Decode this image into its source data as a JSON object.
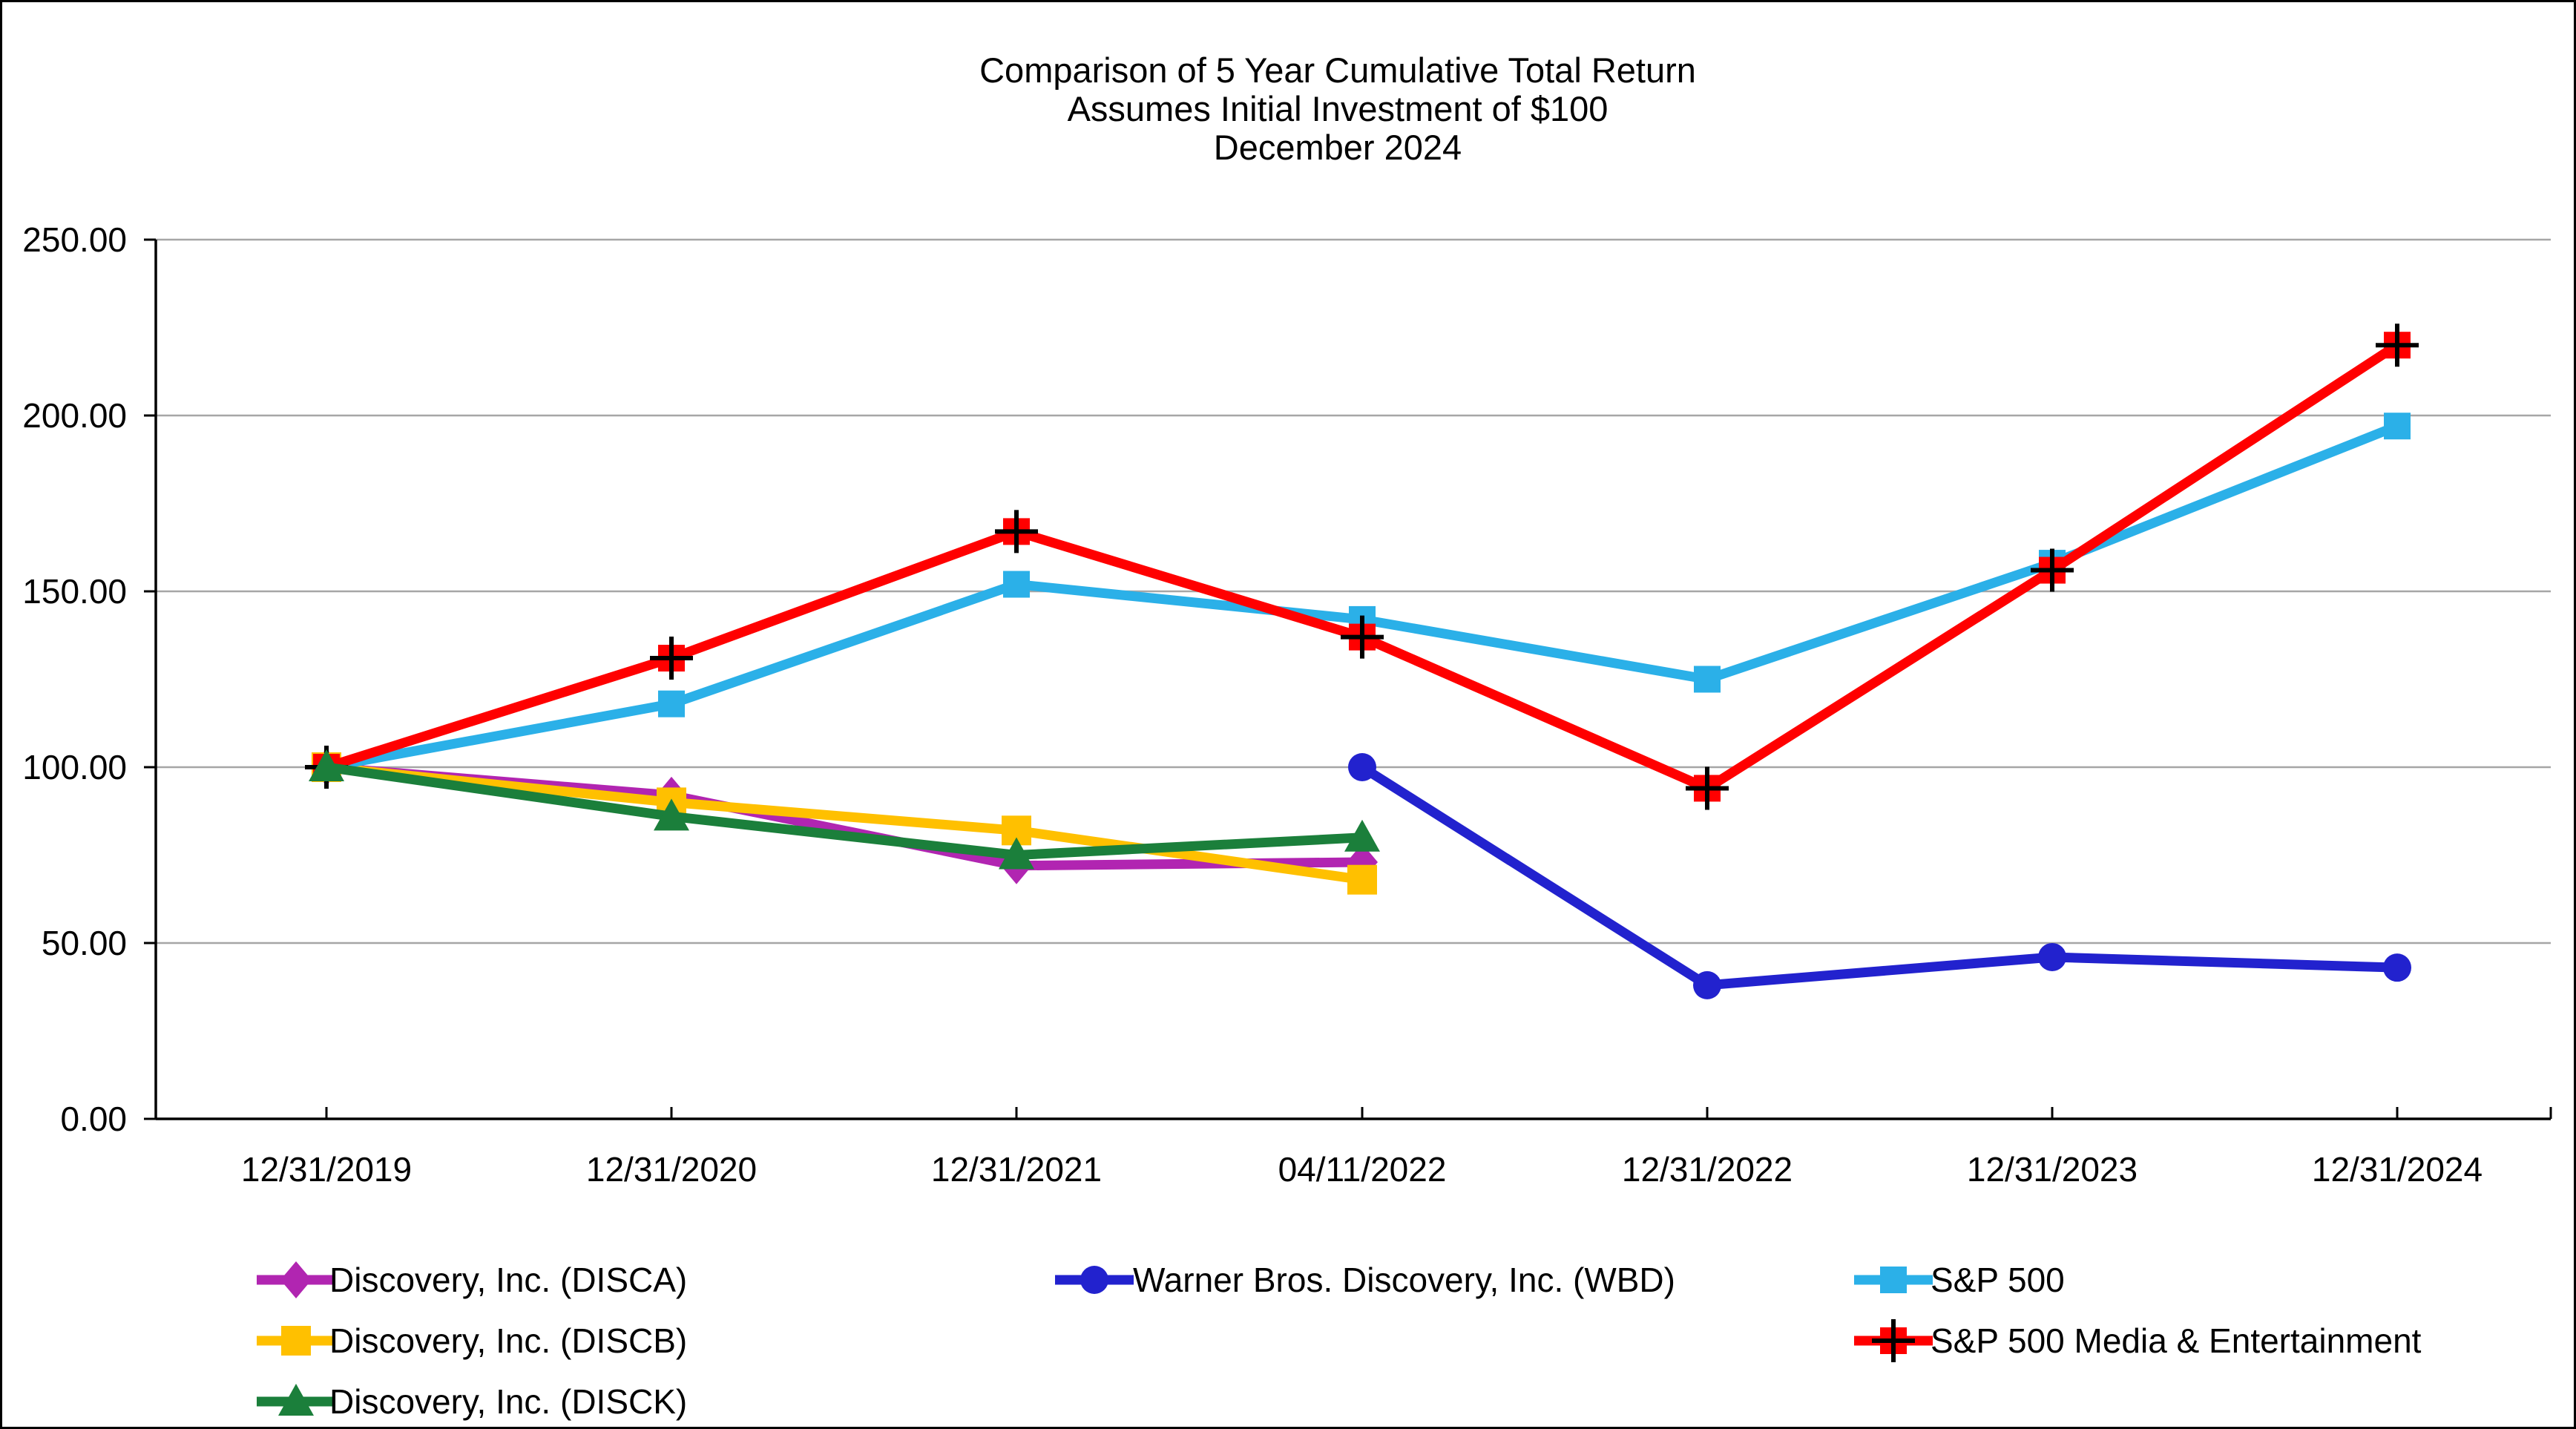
{
  "title": {
    "line1": "Comparison of 5 Year Cumulative Total Return",
    "line2": "Assumes Initial Investment of $100",
    "line3": "December 2024"
  },
  "chart_data": {
    "type": "line",
    "title": "Comparison of 5 Year Cumulative Total Return",
    "subtitle": "Assumes Initial Investment of $100",
    "date_label": "December 2024",
    "categories": [
      "12/31/2019",
      "12/31/2020",
      "12/31/2021",
      "04/11/2022",
      "12/31/2022",
      "12/31/2023",
      "12/31/2024"
    ],
    "y_ticks": [
      {
        "label": "0.00",
        "value": 0
      },
      {
        "label": "50.00",
        "value": 50
      },
      {
        "label": "100.00",
        "value": 100
      },
      {
        "label": "150.00",
        "value": 150
      },
      {
        "label": "200.00",
        "value": 200
      },
      {
        "label": "250.00",
        "value": 250
      }
    ],
    "ylim": [
      0,
      250
    ],
    "grid": true,
    "legend_position": "bottom",
    "colors": {
      "grid": "#A6A6A6",
      "axis": "#000000",
      "marker_cross": "#000000"
    },
    "series": [
      {
        "name": "Discovery, Inc. (DISCA)",
        "color": "#B125B1",
        "marker": "diamond",
        "values": [
          100,
          92,
          72,
          73,
          null,
          null,
          null
        ]
      },
      {
        "name": "Discovery, Inc. (DISCB)",
        "color": "#FFC000",
        "marker": "square",
        "values": [
          100,
          90,
          82,
          68,
          null,
          null,
          null
        ]
      },
      {
        "name": "Discovery, Inc. (DISCK)",
        "color": "#1B7F3B",
        "marker": "triangle",
        "values": [
          100,
          86,
          75,
          80,
          null,
          null,
          null
        ]
      },
      {
        "name": "Warner Bros. Discovery, Inc. (WBD)",
        "color": "#2222CE",
        "marker": "circle",
        "values": [
          null,
          null,
          null,
          100,
          38,
          46,
          43
        ]
      },
      {
        "name": "S&P 500",
        "color": "#2BB0E8",
        "marker": "square",
        "values": [
          100,
          118,
          152,
          142,
          125,
          158,
          197
        ]
      },
      {
        "name": "S&P 500 Media & Entertainment",
        "color": "#FF0000",
        "marker": "square-plus",
        "values": [
          100,
          131,
          167,
          137,
          94,
          156,
          220
        ]
      }
    ]
  }
}
